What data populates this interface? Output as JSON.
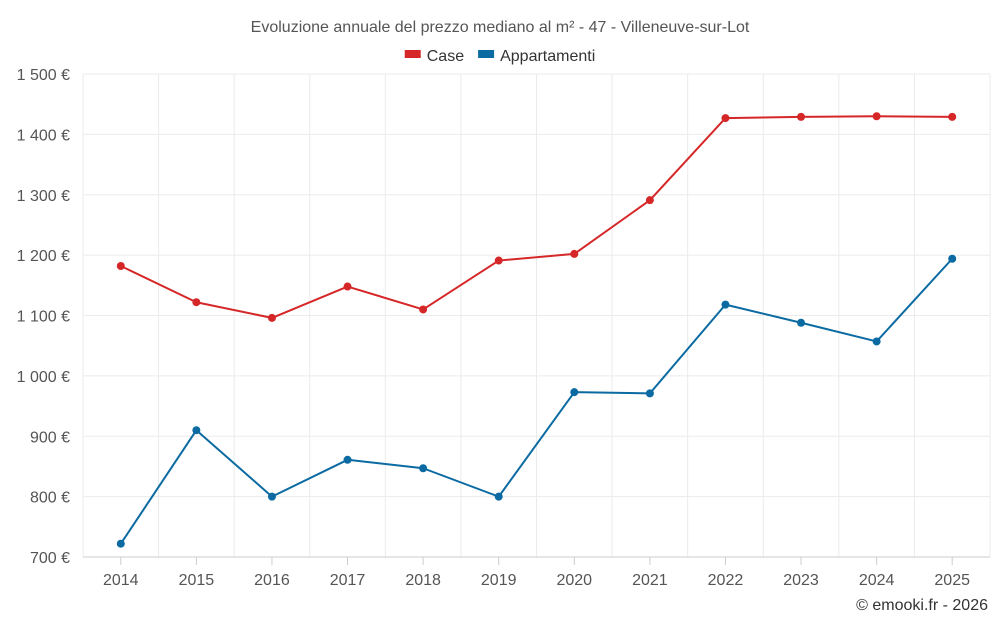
{
  "chart_data": {
    "type": "line",
    "title": "Evoluzione annuale del prezzo mediano al m² - 47 - Villeneuve-sur-Lot",
    "categories": [
      "2014",
      "2015",
      "2016",
      "2017",
      "2018",
      "2019",
      "2020",
      "2021",
      "2022",
      "2023",
      "2024",
      "2025"
    ],
    "series": [
      {
        "name": "Case",
        "color": "#d62728",
        "values": [
          1182,
          1122,
          1096,
          1148,
          1110,
          1191,
          1202,
          1291,
          1427,
          1429,
          1430,
          1429
        ]
      },
      {
        "name": "Appartamenti",
        "color": "#0a6aa1",
        "values": [
          722,
          910,
          800,
          861,
          847,
          800,
          973,
          971,
          1118,
          1088,
          1057,
          1194
        ]
      }
    ],
    "ylim": [
      700,
      1500
    ],
    "yticks": [
      700,
      800,
      900,
      1000,
      1100,
      1200,
      1300,
      1400,
      1500
    ],
    "ytick_labels": [
      "700 €",
      "800 €",
      "900 €",
      "1 000 €",
      "1 100 €",
      "1 200 €",
      "1 300 €",
      "1 400 €",
      "1 500 €"
    ],
    "xlabel": "",
    "ylabel": "",
    "grid": true,
    "legend": "top-center"
  },
  "credit": "© emooki.fr - 2026"
}
